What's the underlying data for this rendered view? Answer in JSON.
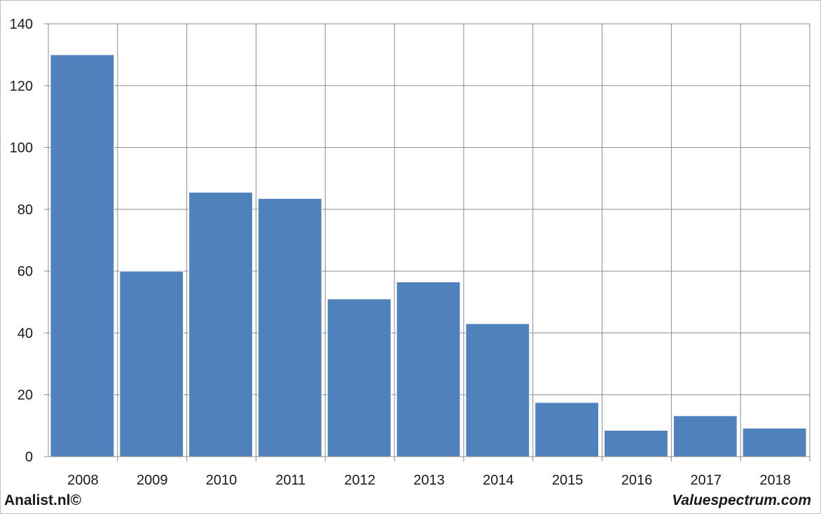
{
  "chart_data": {
    "type": "bar",
    "categories": [
      "2008",
      "2009",
      "2010",
      "2011",
      "2012",
      "2013",
      "2014",
      "2015",
      "2016",
      "2017",
      "2018"
    ],
    "values": [
      130,
      60,
      85.5,
      83.5,
      51,
      56.5,
      43,
      17.5,
      8.5,
      13.2,
      9.2
    ],
    "title": "",
    "xlabel": "",
    "ylabel": "",
    "ylim": [
      0,
      140
    ],
    "yticks": [
      "0",
      "20",
      "40",
      "60",
      "80",
      "100",
      "120",
      "140"
    ],
    "grid": true,
    "bar_color": "#4f81bd"
  },
  "footer": {
    "left": "Analist.nl©",
    "right": "Valuespectrum.com"
  }
}
